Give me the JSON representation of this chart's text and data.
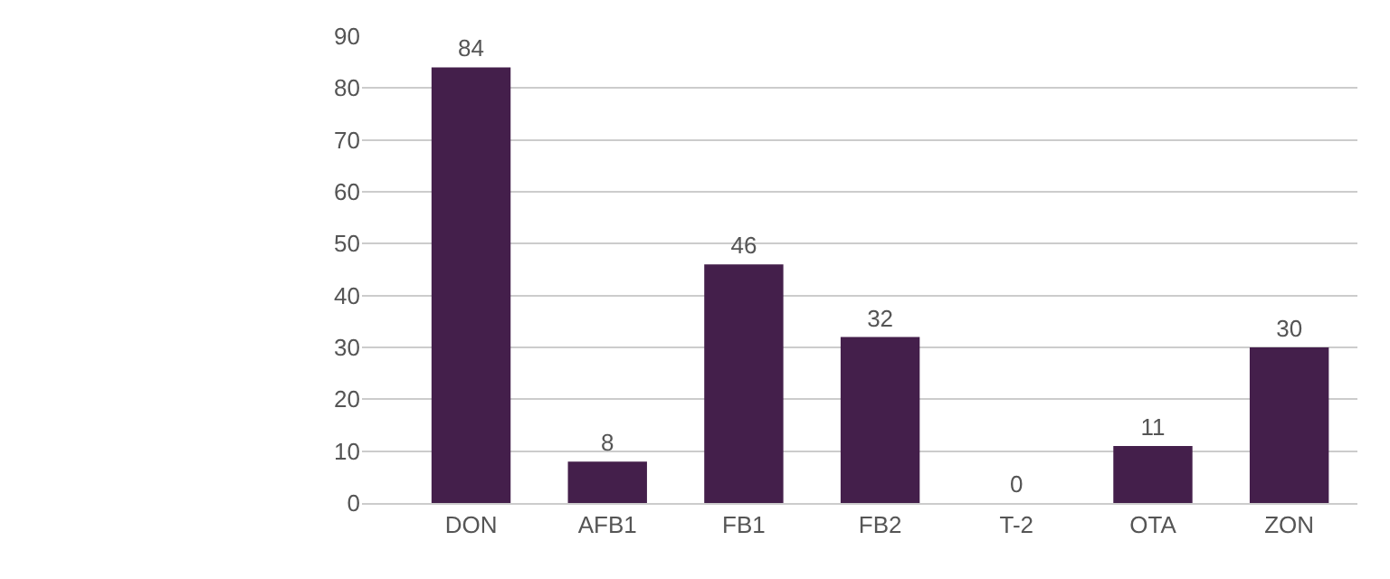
{
  "chart_data": {
    "type": "bar",
    "categories": [
      "DON",
      "AFB1",
      "FB1",
      "FB2",
      "T-2",
      "OTA",
      "ZON"
    ],
    "values": [
      84,
      8,
      46,
      32,
      0,
      11,
      30
    ],
    "color": "#441f4b",
    "ylim": [
      0,
      90
    ],
    "yticks": [
      0,
      10,
      20,
      30,
      40,
      50,
      60,
      70,
      80,
      90
    ],
    "grid": "y",
    "data_labels": true,
    "legend": false
  }
}
